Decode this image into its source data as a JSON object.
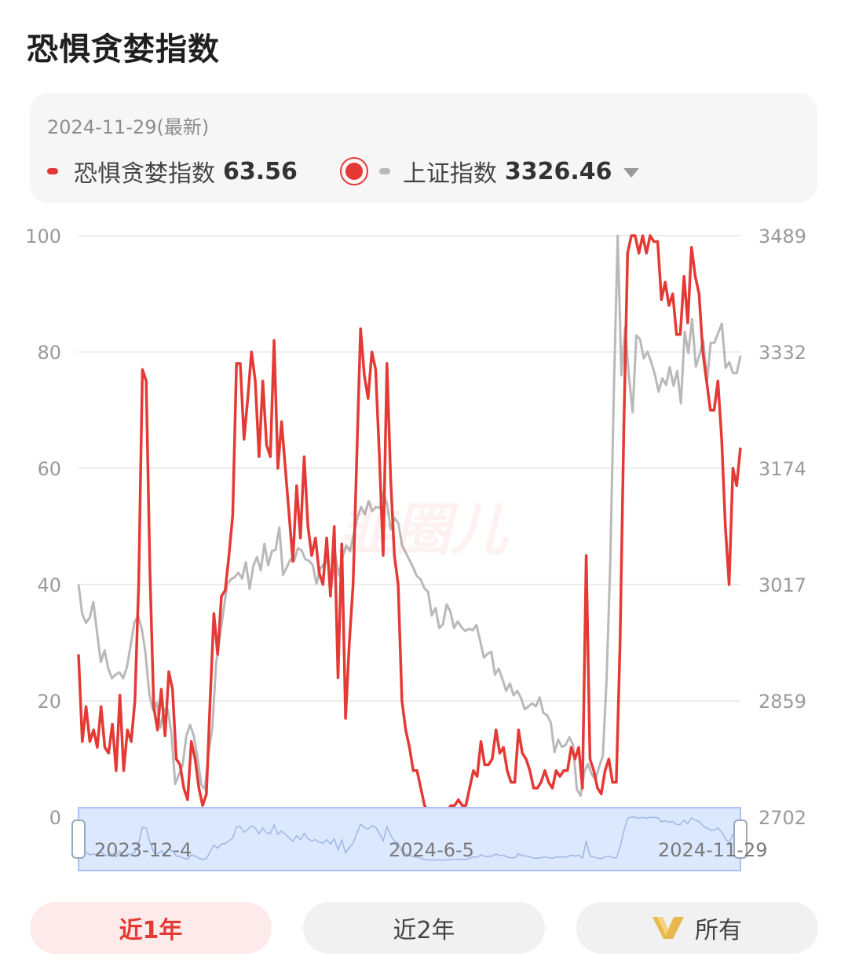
{
  "header": {
    "title": "恐惧贪婪指数"
  },
  "info": {
    "date": "2024-11-29(最新)",
    "series1_label": "恐惧贪婪指数",
    "series1_value": "63.56",
    "series2_label": "上证指数",
    "series2_value": "3326.46"
  },
  "watermark": "韭圈儿",
  "buttons": {
    "one_year": "近1年",
    "two_year": "近2年",
    "all": "所有"
  },
  "colors": {
    "accent": "#e53935",
    "secondary_line": "#b9b9b9",
    "slider_fill": "#dce8fd",
    "slider_border": "#a9c2f3"
  },
  "icons": {
    "vip": "vip-v-icon",
    "dropdown": "caret-down-icon",
    "radio": "radio-selected-icon"
  },
  "chart_data": {
    "type": "line",
    "grid": true,
    "left_axis": {
      "ticks": [
        "0",
        "20",
        "40",
        "60",
        "80",
        "100"
      ],
      "range": [
        0,
        100
      ]
    },
    "right_axis": {
      "ticks": [
        "2702",
        "2859",
        "3017",
        "3174",
        "3332",
        "3489"
      ],
      "range": [
        2702,
        3489
      ]
    },
    "x_labels": [
      "2023-12-4",
      "2024-6-5",
      "2024-11-29"
    ],
    "series": [
      {
        "name": "恐惧贪婪指数",
        "axis": "left",
        "color": "#e53935",
        "values": [
          28,
          13,
          19,
          13,
          15,
          12,
          19,
          12,
          11,
          16,
          8,
          21,
          8,
          15,
          13,
          20,
          40,
          77,
          75,
          42,
          19,
          15,
          22,
          14,
          25,
          22,
          10,
          9,
          5,
          3,
          13,
          10,
          5,
          2,
          4,
          20,
          35,
          28,
          38,
          39,
          45,
          52,
          78,
          78,
          65,
          72,
          80,
          75,
          62,
          75,
          64,
          62,
          82,
          60,
          68,
          60,
          52,
          44,
          57,
          48,
          62,
          50,
          45,
          48,
          42,
          40,
          48,
          38,
          50,
          24,
          47,
          17,
          30,
          40,
          62,
          84,
          76,
          72,
          80,
          77,
          62,
          45,
          78,
          58,
          45,
          40,
          20,
          15,
          12,
          8,
          8,
          5,
          2,
          1,
          1,
          1,
          1,
          1,
          1,
          2,
          2,
          3,
          2,
          2,
          5,
          8,
          7,
          13,
          9,
          9,
          10,
          15,
          11,
          12,
          8,
          6,
          6,
          15,
          11,
          10,
          8,
          5,
          5,
          6,
          8,
          6,
          5,
          8,
          7,
          8,
          8,
          12,
          10,
          12,
          5,
          45,
          10,
          8,
          5,
          4,
          8,
          10,
          6,
          6,
          30,
          67,
          97,
          100,
          100,
          97,
          100,
          97,
          100,
          99,
          99,
          89,
          92,
          88,
          90,
          83,
          83,
          93,
          85,
          98,
          93,
          90,
          80,
          75,
          70,
          70,
          75,
          65,
          50,
          40,
          60,
          57,
          63.56
        ]
      },
      {
        "name": "上证指数",
        "axis": "right",
        "color": "#b9b9b9",
        "values": [
          3017,
          2977,
          2965,
          2972,
          2993,
          2951,
          2912,
          2928,
          2903,
          2890,
          2895,
          2898,
          2890,
          2905,
          2934,
          2965,
          2975,
          2957,
          2925,
          2870,
          2847,
          2857,
          2823,
          2848,
          2848,
          2815,
          2747,
          2760,
          2772,
          2812,
          2827,
          2812,
          2782,
          2746,
          2740,
          2790,
          2824,
          2910,
          2945,
          2982,
          3017,
          3024,
          3027,
          3033,
          3025,
          3047,
          3011,
          3042,
          3054,
          3036,
          3072,
          3043,
          3062,
          3064,
          3094,
          3030,
          3040,
          3051,
          3049,
          3066,
          3063,
          3051,
          3049,
          3043,
          3018,
          3038,
          3045,
          3049,
          3013,
          3059,
          3029,
          3054,
          3070,
          3062,
          3085,
          3107,
          3122,
          3112,
          3130,
          3116,
          3122,
          3120,
          3142,
          3125,
          3091,
          3107,
          3100,
          3070,
          3060,
          3050,
          3040,
          3028,
          3024,
          3012,
          3007,
          2975,
          2985,
          2958,
          2963,
          2990,
          2980,
          2958,
          2967,
          2959,
          2954,
          2957,
          2955,
          2962,
          2941,
          2918,
          2923,
          2926,
          2895,
          2903,
          2889,
          2873,
          2883,
          2867,
          2873,
          2863,
          2848,
          2852,
          2856,
          2852,
          2864,
          2843,
          2840,
          2830,
          2790,
          2807,
          2797,
          2800,
          2810,
          2800,
          2740,
          2731,
          2763,
          2774,
          2760,
          2753,
          2770,
          2785,
          2888,
          3045,
          3287,
          3489,
          3300,
          3365,
          3300,
          3250,
          3354,
          3349,
          3323,
          3332,
          3318,
          3301,
          3278,
          3296,
          3287,
          3311,
          3286,
          3306,
          3262,
          3359,
          3330,
          3376,
          3312,
          3328,
          3348,
          3291,
          3344,
          3344,
          3357,
          3370,
          3310,
          3318,
          3303,
          3303,
          3326.46
        ]
      }
    ]
  }
}
